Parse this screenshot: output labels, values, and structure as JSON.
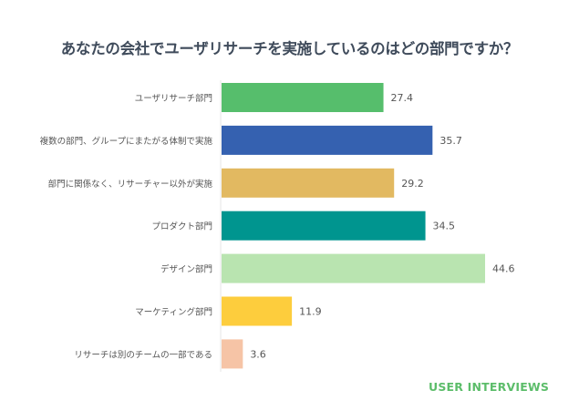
{
  "chart_data": {
    "type": "bar",
    "orientation": "horizontal",
    "title": "あなたの会社でユーザリサーチを実施しているのはどの部門ですか？",
    "categories": [
      "ユーザリサーチ部門",
      "複数の部門、グループにまたがる体制で実施",
      "部門に関係なく、リサーチャー以外が実施",
      "プロダクト部門",
      "デザイン部門",
      "マーケティング部門",
      "リサーチは別のチームの一部である"
    ],
    "values": [
      27.4,
      35.7,
      29.2,
      34.5,
      44.6,
      11.9,
      3.6
    ],
    "colors": [
      "#56be6c",
      "#3561b0",
      "#e2b961",
      "#00958f",
      "#b9e4b0",
      "#fdcd3d",
      "#f6c4a6"
    ],
    "xlim": [
      0,
      48
    ],
    "grid": false,
    "legend": "none"
  },
  "brand": {
    "logo_text": "USER INTERVIEWS"
  }
}
